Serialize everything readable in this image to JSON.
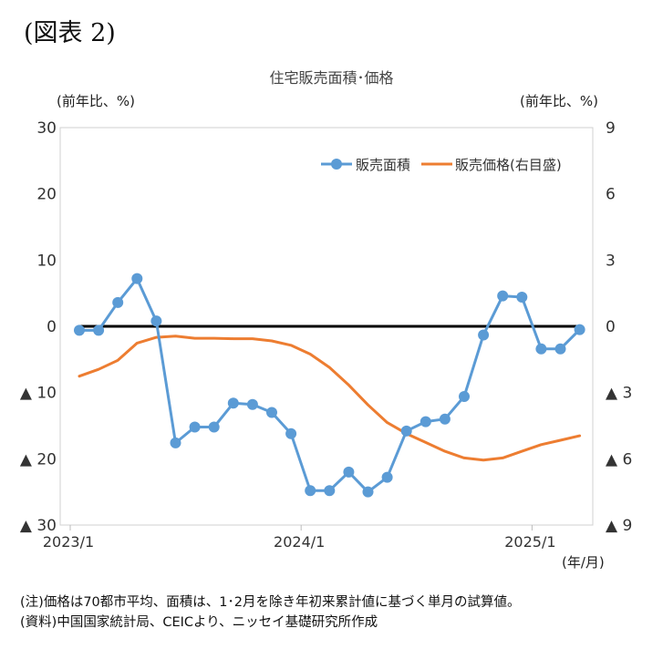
{
  "figure_label": "(図表 2)",
  "chart_data": {
    "type": "line",
    "title": "住宅販売面積･価格",
    "left_axis_unit": "(前年比、%)",
    "right_axis_unit": "(前年比、%)",
    "x_axis_unit": "(年/月)",
    "x_tick_labels": [
      "2023/1",
      "2024/1",
      "2025/1"
    ],
    "x_tick_months": [
      0,
      12,
      24
    ],
    "left_axis": {
      "ylim": [
        -30,
        30
      ],
      "ticks": [
        30,
        20,
        10,
        0,
        -10,
        -20,
        -30
      ],
      "tick_labels": [
        "30",
        "20",
        "10",
        "0",
        "▲ 10",
        "▲ 20",
        "▲ 30"
      ]
    },
    "right_axis": {
      "ylim": [
        -9,
        9
      ],
      "ticks": [
        9,
        6,
        3,
        0,
        -3,
        -6,
        -9
      ],
      "tick_labels": [
        "9",
        "6",
        "3",
        "0",
        "▲ 3",
        "▲ 6",
        "▲ 9"
      ]
    },
    "grid": false,
    "legend_position": "top-right",
    "series": [
      {
        "name": "販売面積",
        "axis": "left",
        "color": "#5b9bd5",
        "marker": "circle",
        "values": [
          -0.6,
          -0.6,
          3.6,
          7.2,
          0.8,
          -17.6,
          -15.2,
          -15.2,
          -11.6,
          -11.8,
          -13.0,
          -16.2,
          -24.8,
          -24.8,
          -22.0,
          -25.0,
          -22.8,
          -15.8,
          -14.4,
          -14.0,
          -10.6,
          -1.3,
          4.6,
          4.4,
          -3.4,
          -3.4,
          -0.5
        ]
      },
      {
        "name": "販売価格(右目盛)",
        "axis": "right",
        "color": "#ed7d31",
        "marker": "none",
        "values": [
          -2.26,
          -1.95,
          -1.54,
          -0.76,
          -0.5,
          -0.44,
          -0.54,
          -0.54,
          -0.56,
          -0.56,
          -0.66,
          -0.86,
          -1.26,
          -1.86,
          -2.66,
          -3.56,
          -4.36,
          -4.86,
          -5.26,
          -5.66,
          -5.96,
          -6.06,
          -5.96,
          -5.66,
          -5.36,
          -5.16,
          -4.96
        ]
      }
    ],
    "zero_line_color": "#000000"
  },
  "notes": [
    "(注)価格は70都市平均、面積は、1･2月を除き年初来累計値に基づく単月の試算値。",
    "(資料)中国国家統計局、CEICより、ニッセイ基礎研究所作成"
  ]
}
